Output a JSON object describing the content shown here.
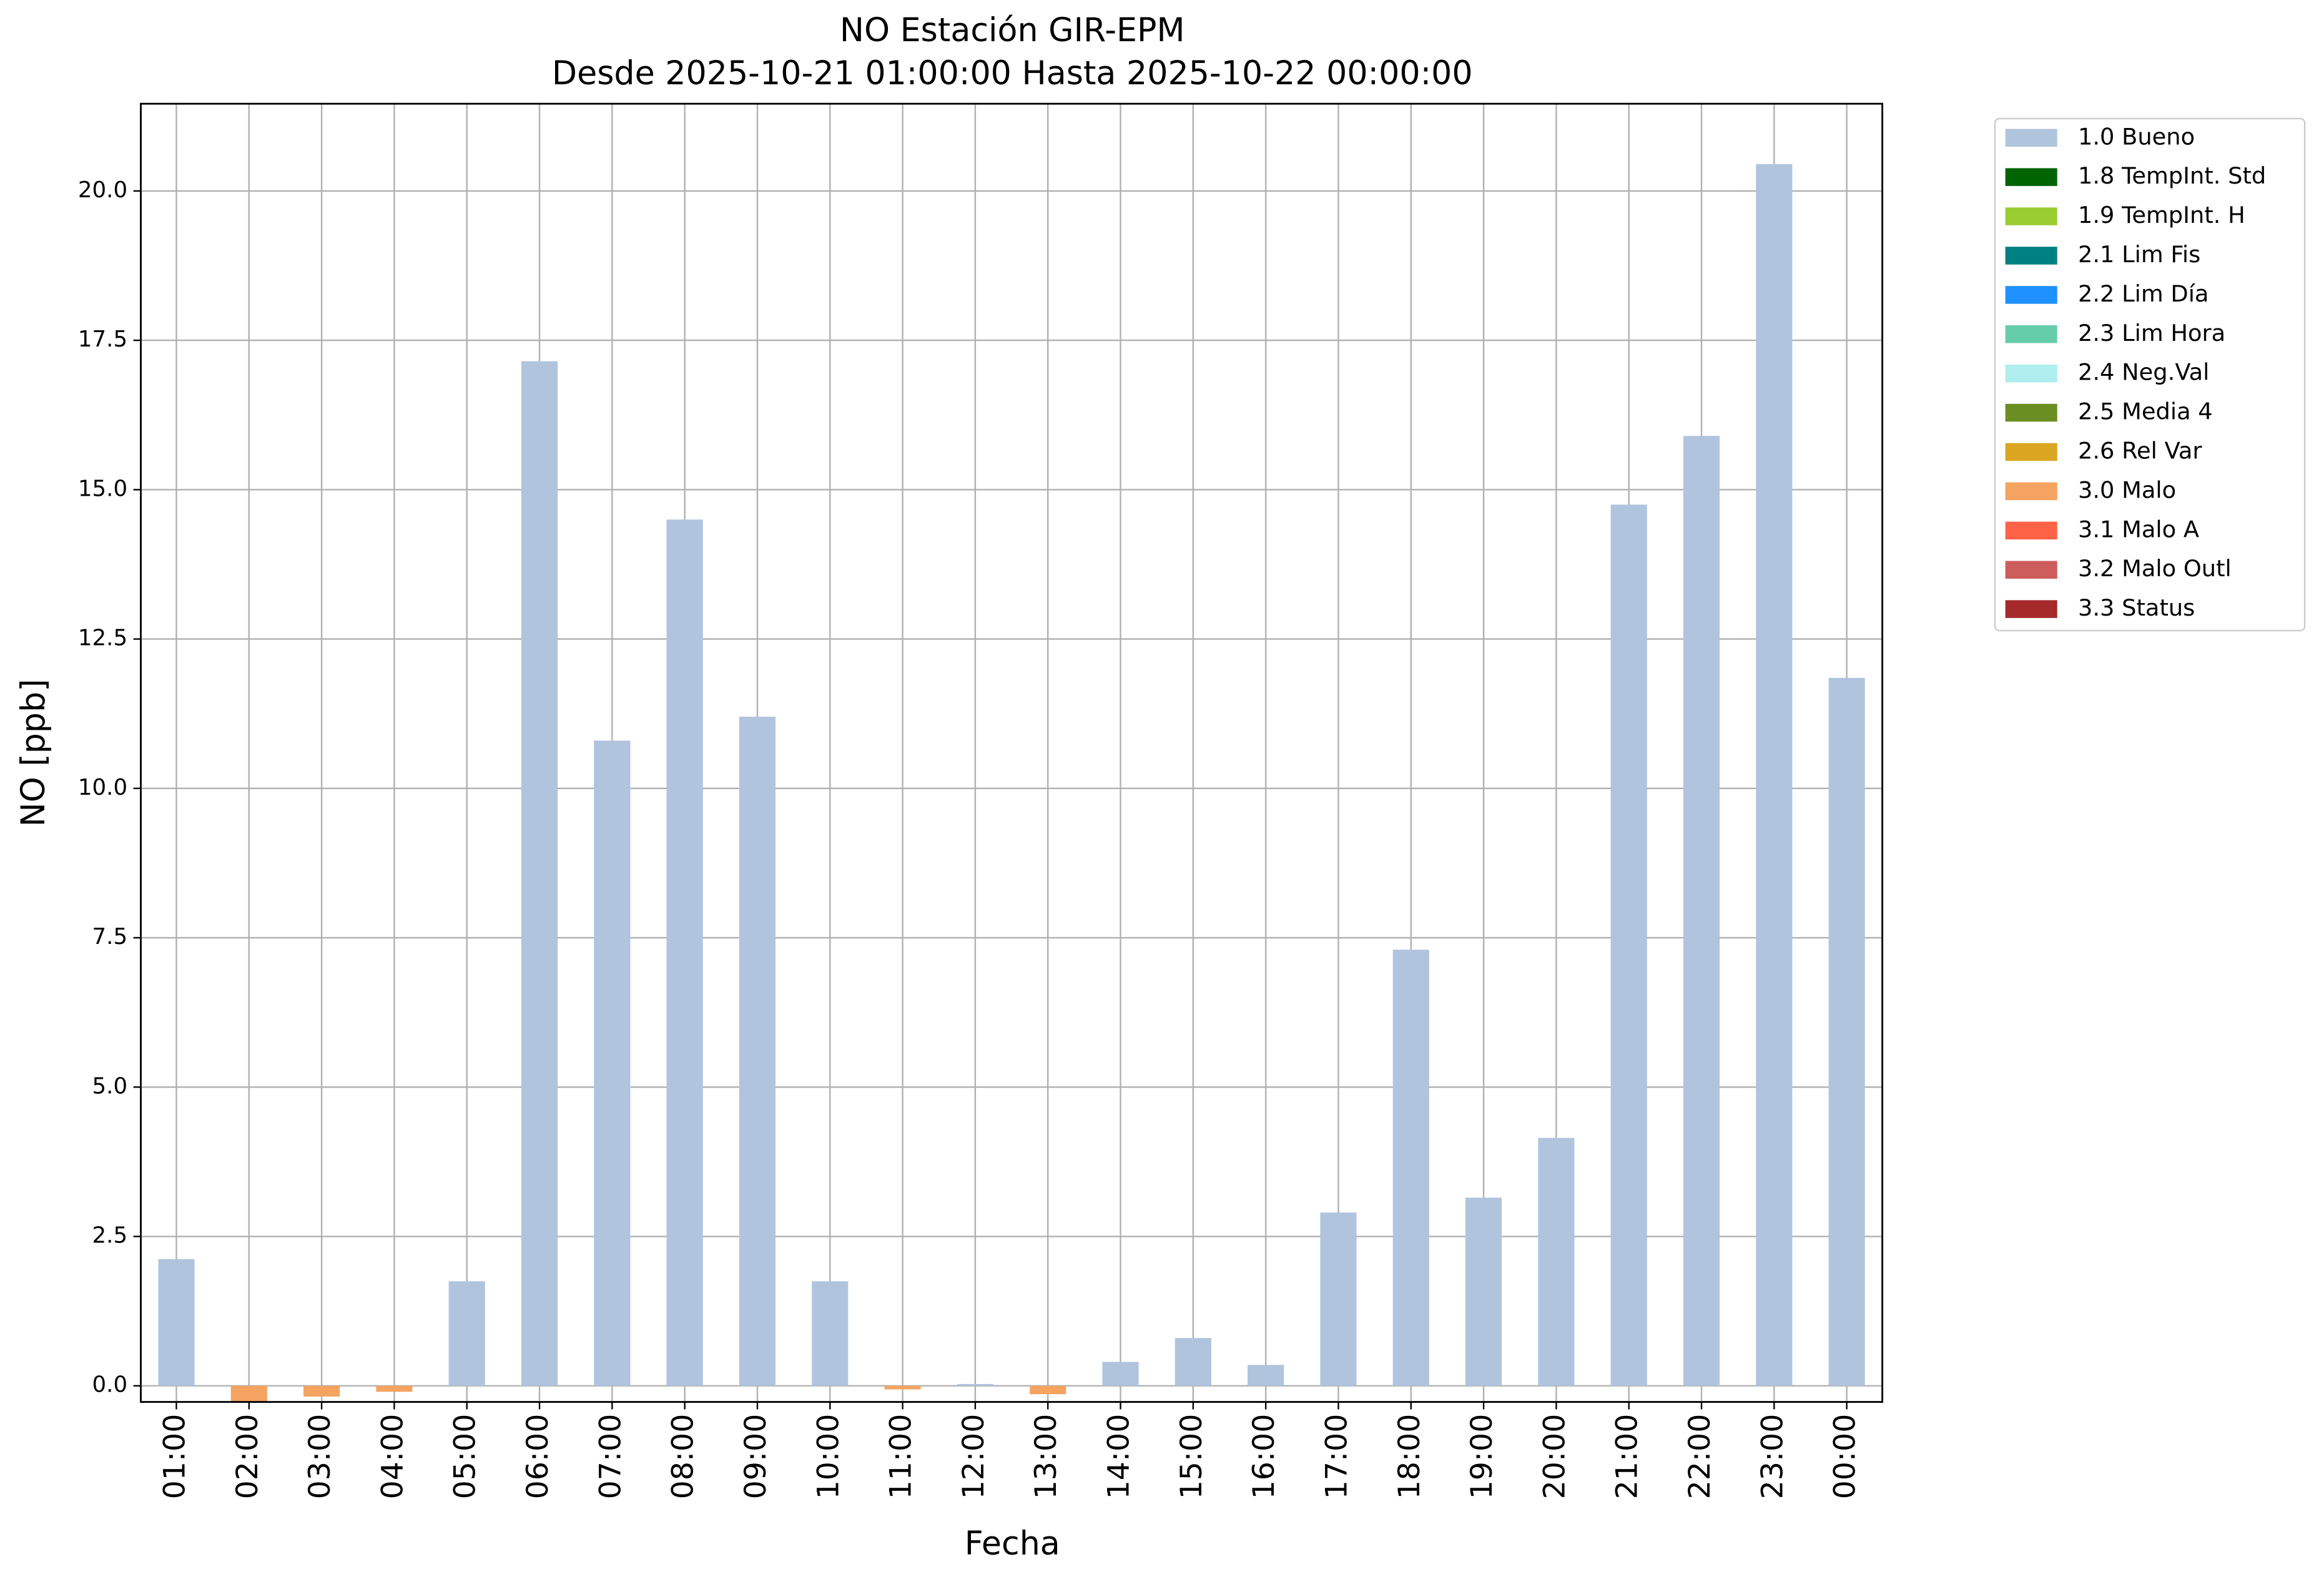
{
  "chart_data": {
    "type": "bar",
    "title": "NO Estación GIR-EPM",
    "subtitle": "Desde 2025-10-21 01:00:00 Hasta 2025-10-22 00:00:00",
    "x_label": "Fecha",
    "y_label": "NO [ppb]",
    "categories": [
      "01:00",
      "02:00",
      "03:00",
      "04:00",
      "05:00",
      "06:00",
      "07:00",
      "08:00",
      "09:00",
      "10:00",
      "11:00",
      "12:00",
      "13:00",
      "14:00",
      "15:00",
      "16:00",
      "17:00",
      "18:00",
      "19:00",
      "20:00",
      "21:00",
      "22:00",
      "23:00",
      "00:00"
    ],
    "series": [
      {
        "name": "1.0 Bueno",
        "color": "#b0c4de",
        "values": [
          2.12,
          null,
          null,
          null,
          1.75,
          17.15,
          10.8,
          14.5,
          11.2,
          1.75,
          null,
          0.03,
          null,
          0.4,
          0.8,
          0.35,
          2.9,
          7.3,
          3.15,
          4.15,
          14.75,
          15.9,
          20.45,
          11.85
        ]
      },
      {
        "name": "1.8 TempInt. Std",
        "color": "#006400",
        "values": [
          null,
          null,
          null,
          null,
          null,
          null,
          null,
          null,
          null,
          null,
          null,
          null,
          null,
          null,
          null,
          null,
          null,
          null,
          null,
          null,
          null,
          null,
          null,
          null
        ]
      },
      {
        "name": "1.9 TempInt. H",
        "color": "#9acd32",
        "values": [
          null,
          null,
          null,
          null,
          null,
          null,
          null,
          null,
          null,
          null,
          null,
          null,
          null,
          null,
          null,
          null,
          null,
          null,
          null,
          null,
          null,
          null,
          null,
          null
        ]
      },
      {
        "name": "2.1 Lim Fis",
        "color": "#008080",
        "values": [
          null,
          null,
          null,
          null,
          null,
          null,
          null,
          null,
          null,
          null,
          null,
          null,
          null,
          null,
          null,
          null,
          null,
          null,
          null,
          null,
          null,
          null,
          null,
          null
        ]
      },
      {
        "name": "2.2 Lim Día",
        "color": "#1e90ff",
        "values": [
          null,
          null,
          null,
          null,
          null,
          null,
          null,
          null,
          null,
          null,
          null,
          null,
          null,
          null,
          null,
          null,
          null,
          null,
          null,
          null,
          null,
          null,
          null,
          null
        ]
      },
      {
        "name": "2.3 Lim Hora",
        "color": "#66cdaa",
        "values": [
          null,
          null,
          null,
          null,
          null,
          null,
          null,
          null,
          null,
          null,
          null,
          null,
          null,
          null,
          null,
          null,
          null,
          null,
          null,
          null,
          null,
          null,
          null,
          null
        ]
      },
      {
        "name": "2.4 Neg.Val",
        "color": "#afeeee",
        "values": [
          null,
          null,
          null,
          null,
          null,
          null,
          null,
          null,
          null,
          null,
          null,
          null,
          null,
          null,
          null,
          null,
          null,
          null,
          null,
          null,
          null,
          null,
          null,
          null
        ]
      },
      {
        "name": "2.5 Media 4",
        "color": "#6b8e23",
        "values": [
          null,
          null,
          null,
          null,
          null,
          null,
          null,
          null,
          null,
          null,
          null,
          null,
          null,
          null,
          null,
          null,
          null,
          null,
          null,
          null,
          null,
          null,
          null,
          null
        ]
      },
      {
        "name": "2.6 Rel Var",
        "color": "#daa520",
        "values": [
          null,
          null,
          null,
          null,
          null,
          null,
          null,
          null,
          null,
          null,
          null,
          null,
          null,
          null,
          null,
          null,
          null,
          null,
          null,
          null,
          null,
          null,
          null,
          null
        ]
      },
      {
        "name": "3.0 Malo",
        "color": "#f4a460",
        "values": [
          null,
          -0.26,
          -0.18,
          -0.1,
          null,
          null,
          null,
          null,
          null,
          null,
          -0.06,
          null,
          -0.14,
          null,
          null,
          null,
          null,
          null,
          null,
          null,
          null,
          null,
          null,
          null
        ]
      },
      {
        "name": "3.1 Malo A",
        "color": "#ff6347",
        "values": [
          null,
          null,
          null,
          null,
          null,
          null,
          null,
          null,
          null,
          null,
          null,
          null,
          null,
          null,
          null,
          null,
          null,
          null,
          null,
          null,
          null,
          null,
          null,
          null
        ]
      },
      {
        "name": "3.2 Malo Outl",
        "color": "#cd5c5c",
        "values": [
          null,
          null,
          null,
          null,
          null,
          null,
          null,
          null,
          null,
          null,
          null,
          null,
          null,
          null,
          null,
          null,
          null,
          null,
          null,
          null,
          null,
          null,
          null,
          null
        ]
      },
      {
        "name": "3.3 Status",
        "color": "#a52a2a",
        "values": [
          null,
          null,
          null,
          null,
          null,
          null,
          null,
          null,
          null,
          null,
          null,
          null,
          null,
          null,
          null,
          null,
          null,
          null,
          null,
          null,
          null,
          null,
          null,
          null
        ]
      }
    ],
    "ylim": [
      -0.27,
      21.46
    ],
    "yticks": [
      {
        "value": 0,
        "label": "0.0"
      },
      2.5,
      {
        "value": 5,
        "label": "5.0"
      },
      7.5,
      {
        "value": 10,
        "label": "10.0"
      },
      12.5,
      {
        "value": 15,
        "label": "15.0"
      },
      17.5,
      {
        "value": 20,
        "label": "20.0"
      }
    ],
    "grid": true,
    "stacked": true,
    "legend": "outside upper right"
  }
}
